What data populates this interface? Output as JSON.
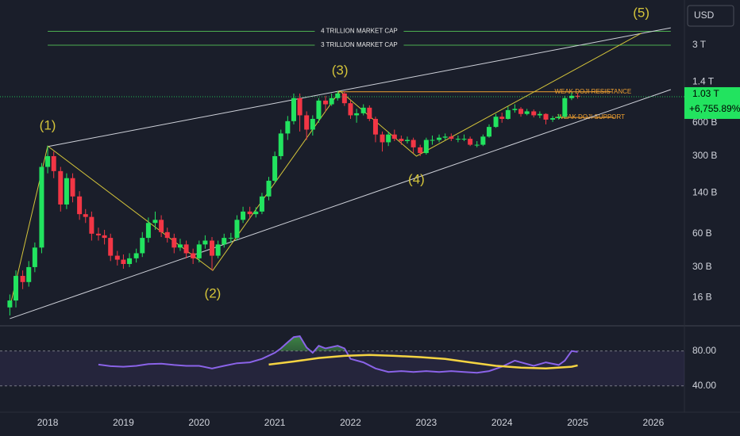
{
  "chart_data": [
    {
      "type": "candlestick",
      "currency": "USD",
      "log_scale": true,
      "up_color": "#22e35f",
      "down_color": "#f23645",
      "x": [
        2017.5,
        2017.58,
        2017.67,
        2017.75,
        2017.83,
        2017.92,
        2018,
        2018.08,
        2018.17,
        2018.25,
        2018.33,
        2018.42,
        2018.5,
        2018.58,
        2018.67,
        2018.75,
        2018.83,
        2018.92,
        2019,
        2019.08,
        2019.17,
        2019.25,
        2019.33,
        2019.42,
        2019.5,
        2019.58,
        2019.67,
        2019.75,
        2019.83,
        2019.92,
        2020,
        2020.08,
        2020.17,
        2020.25,
        2020.33,
        2020.42,
        2020.5,
        2020.58,
        2020.67,
        2020.75,
        2020.83,
        2020.92,
        2021,
        2021.08,
        2021.17,
        2021.25,
        2021.33,
        2021.42,
        2021.5,
        2021.58,
        2021.67,
        2021.75,
        2021.83,
        2021.92,
        2022,
        2022.08,
        2022.17,
        2022.25,
        2022.33,
        2022.42,
        2022.5,
        2022.58,
        2022.67,
        2022.75,
        2022.83,
        2022.92,
        2023,
        2023.08,
        2023.17,
        2023.25,
        2023.33,
        2023.42,
        2023.5,
        2023.58,
        2023.67,
        2023.75,
        2023.83,
        2023.92,
        2024,
        2024.08,
        2024.17,
        2024.25,
        2024.33,
        2024.42,
        2024.5,
        2024.58,
        2024.67,
        2024.75,
        2024.83,
        2024.92,
        2025
      ],
      "open": [
        13,
        15,
        25,
        22,
        30,
        45,
        240,
        300,
        220,
        110,
        190,
        130,
        90,
        85,
        60,
        58,
        55,
        38,
        35,
        32,
        36,
        40,
        55,
        75,
        80,
        62,
        55,
        45,
        48,
        40,
        36,
        48,
        52,
        38,
        48,
        55,
        55,
        80,
        95,
        90,
        95,
        130,
        180,
        300,
        480,
        620,
        1000,
        700,
        520,
        650,
        950,
        880,
        1000,
        1100,
        900,
        700,
        730,
        820,
        650,
        470,
        400,
        470,
        430,
        410,
        420,
        360,
        320,
        420,
        420,
        440,
        450,
        430,
        430,
        430,
        380,
        380,
        450,
        550,
        680,
        650,
        780,
        800,
        720,
        760,
        700,
        720,
        640,
        660,
        680,
        1000,
        1050
      ],
      "high": [
        17,
        28,
        28,
        34,
        50,
        260,
        370,
        330,
        240,
        210,
        210,
        145,
        100,
        95,
        68,
        65,
        60,
        42,
        39,
        40,
        44,
        62,
        84,
        95,
        88,
        68,
        60,
        54,
        52,
        44,
        52,
        58,
        56,
        52,
        60,
        61,
        88,
        105,
        105,
        104,
        140,
        195,
        330,
        520,
        690,
        1100,
        1100,
        760,
        700,
        1000,
        1050,
        1100,
        1160,
        1150,
        950,
        800,
        880,
        860,
        680,
        500,
        500,
        520,
        460,
        450,
        440,
        380,
        440,
        460,
        470,
        480,
        480,
        460,
        470,
        450,
        410,
        470,
        580,
        720,
        740,
        840,
        880,
        830,
        800,
        790,
        760,
        730,
        690,
        720,
        1050,
        1120,
        1100
      ],
      "low": [
        11,
        13,
        19,
        20,
        27,
        40,
        210,
        190,
        95,
        100,
        115,
        80,
        75,
        52,
        52,
        48,
        34,
        31,
        29,
        30,
        33,
        37,
        50,
        65,
        56,
        50,
        40,
        42,
        36,
        32,
        33,
        44,
        28,
        36,
        45,
        50,
        52,
        75,
        82,
        84,
        90,
        120,
        170,
        280,
        420,
        580,
        500,
        420,
        460,
        600,
        760,
        850,
        950,
        850,
        650,
        600,
        700,
        620,
        400,
        330,
        370,
        410,
        380,
        390,
        320,
        300,
        310,
        380,
        400,
        420,
        410,
        400,
        410,
        370,
        360,
        370,
        440,
        540,
        600,
        640,
        740,
        680,
        700,
        670,
        660,
        580,
        610,
        640,
        660,
        960,
        990
      ],
      "close": [
        15,
        25,
        22,
        30,
        45,
        240,
        300,
        220,
        110,
        190,
        130,
        90,
        85,
        60,
        58,
        55,
        38,
        35,
        32,
        36,
        40,
        55,
        75,
        80,
        62,
        55,
        45,
        48,
        40,
        36,
        48,
        52,
        38,
        48,
        55,
        55,
        80,
        95,
        90,
        95,
        130,
        180,
        300,
        480,
        620,
        1000,
        700,
        520,
        650,
        950,
        880,
        1000,
        1100,
        900,
        700,
        730,
        820,
        650,
        470,
        400,
        470,
        430,
        410,
        420,
        360,
        320,
        420,
        420,
        440,
        450,
        430,
        430,
        430,
        380,
        380,
        450,
        550,
        680,
        650,
        780,
        800,
        720,
        760,
        700,
        720,
        640,
        660,
        680,
        1000,
        1050,
        1030
      ],
      "xlim": [
        2017.37,
        2026.41
      ],
      "xticks": [
        2018,
        2019,
        2020,
        2021,
        2022,
        2023,
        2024,
        2025,
        2026
      ],
      "ylim": [
        9.02,
        7660
      ],
      "yticks": [
        {
          "value": 3000,
          "label": "3 T"
        },
        {
          "value": 1400,
          "label": "1.4 T"
        },
        {
          "value": 600,
          "label": "600 B"
        },
        {
          "value": 300,
          "label": "300 B"
        },
        {
          "value": 140,
          "label": "140 B"
        },
        {
          "value": 60,
          "label": "60 B"
        },
        {
          "value": 30,
          "label": "30 B"
        },
        {
          "value": 16,
          "label": "16 B"
        }
      ],
      "last_price_label": "1.03 T",
      "change_label": "+6,755.89%",
      "last_price_color": "#22e35f",
      "levels": [
        {
          "label": "4 TRILLION MARKET CAP",
          "value": 4000,
          "start": 2018,
          "end": 2026.23,
          "color": "#4caf50",
          "label_position": "center"
        },
        {
          "label": "3 TRILLION MARKET CAP",
          "value": 3000,
          "start": 2018,
          "end": 2026.23,
          "color": "#4caf50",
          "label_position": "center"
        },
        {
          "label": "WEAK DOJI RESISTANCE",
          "value": 1140,
          "start": 2021.8,
          "end": 2025.45,
          "color": "#f0a030",
          "label_position": "end"
        },
        {
          "label": "WEAK DOJI SUPPORT",
          "value": 670,
          "start": 2024.7,
          "end": 2025.49,
          "color": "#f0a030",
          "label_position": "end"
        }
      ],
      "trendlines": {
        "color": "#cfd2da",
        "lines": [
          {
            "x": [
              2018,
              2026.23
            ],
            "values": [
              366,
              4300
            ]
          },
          {
            "x": [
              2017.5,
              2026.23
            ],
            "values": [
              10.3,
              1194
            ]
          }
        ]
      },
      "wave": {
        "color": "#d4c43a",
        "x": [
          2017.5,
          2018,
          2020.18,
          2021.86,
          2022.87,
          2025.84
        ],
        "values": [
          13,
          370,
          28,
          1160,
          300,
          3840
        ],
        "labels": [
          null,
          "(1)",
          "(2)",
          "(3)",
          "(4)",
          "(5)"
        ]
      }
    },
    {
      "type": "line",
      "xlim": [
        2017.37,
        2026.41
      ],
      "ylim": [
        28,
        108
      ],
      "yticks": [
        {
          "value": 80,
          "label": "80.00"
        },
        {
          "value": 40,
          "label": "40.00"
        }
      ],
      "band_color": "#7e57c2",
      "overbought_color": "#4caf50",
      "series": [
        {
          "color": "#8a63e8",
          "x": [
            2018.67,
            2018.83,
            2019,
            2019.17,
            2019.33,
            2019.5,
            2019.67,
            2019.83,
            2020,
            2020.17,
            2020.33,
            2020.5,
            2020.67,
            2020.83,
            2021,
            2021.08,
            2021.17,
            2021.25,
            2021.33,
            2021.42,
            2021.5,
            2021.58,
            2021.67,
            2021.83,
            2021.92,
            2022,
            2022.17,
            2022.33,
            2022.5,
            2022.67,
            2022.83,
            2023,
            2023.17,
            2023.33,
            2023.5,
            2023.67,
            2023.83,
            2024,
            2024.17,
            2024.25,
            2024.42,
            2024.58,
            2024.75,
            2024.83,
            2024.92,
            2025
          ],
          "values": [
            64.5,
            62.7,
            62,
            63,
            65,
            65.5,
            64,
            63,
            63,
            60,
            63,
            66,
            67,
            71,
            78,
            83,
            90,
            96,
            97,
            84,
            78,
            86,
            83,
            86,
            83,
            71,
            67,
            60,
            56,
            57,
            56,
            57,
            56,
            57,
            56,
            55,
            57,
            62,
            69,
            67,
            63,
            67,
            64,
            69,
            80,
            79
          ]
        },
        {
          "color": "#f5d442",
          "x": [
            2020.92,
            2021.25,
            2021.58,
            2021.92,
            2022.25,
            2022.58,
            2022.92,
            2023.25,
            2023.58,
            2023.92,
            2024.25,
            2024.58,
            2024.92,
            2025
          ],
          "values": [
            64.5,
            68,
            72,
            74.5,
            75.5,
            74.5,
            73,
            71,
            67,
            63,
            61,
            60,
            62,
            63.5
          ]
        }
      ]
    }
  ]
}
